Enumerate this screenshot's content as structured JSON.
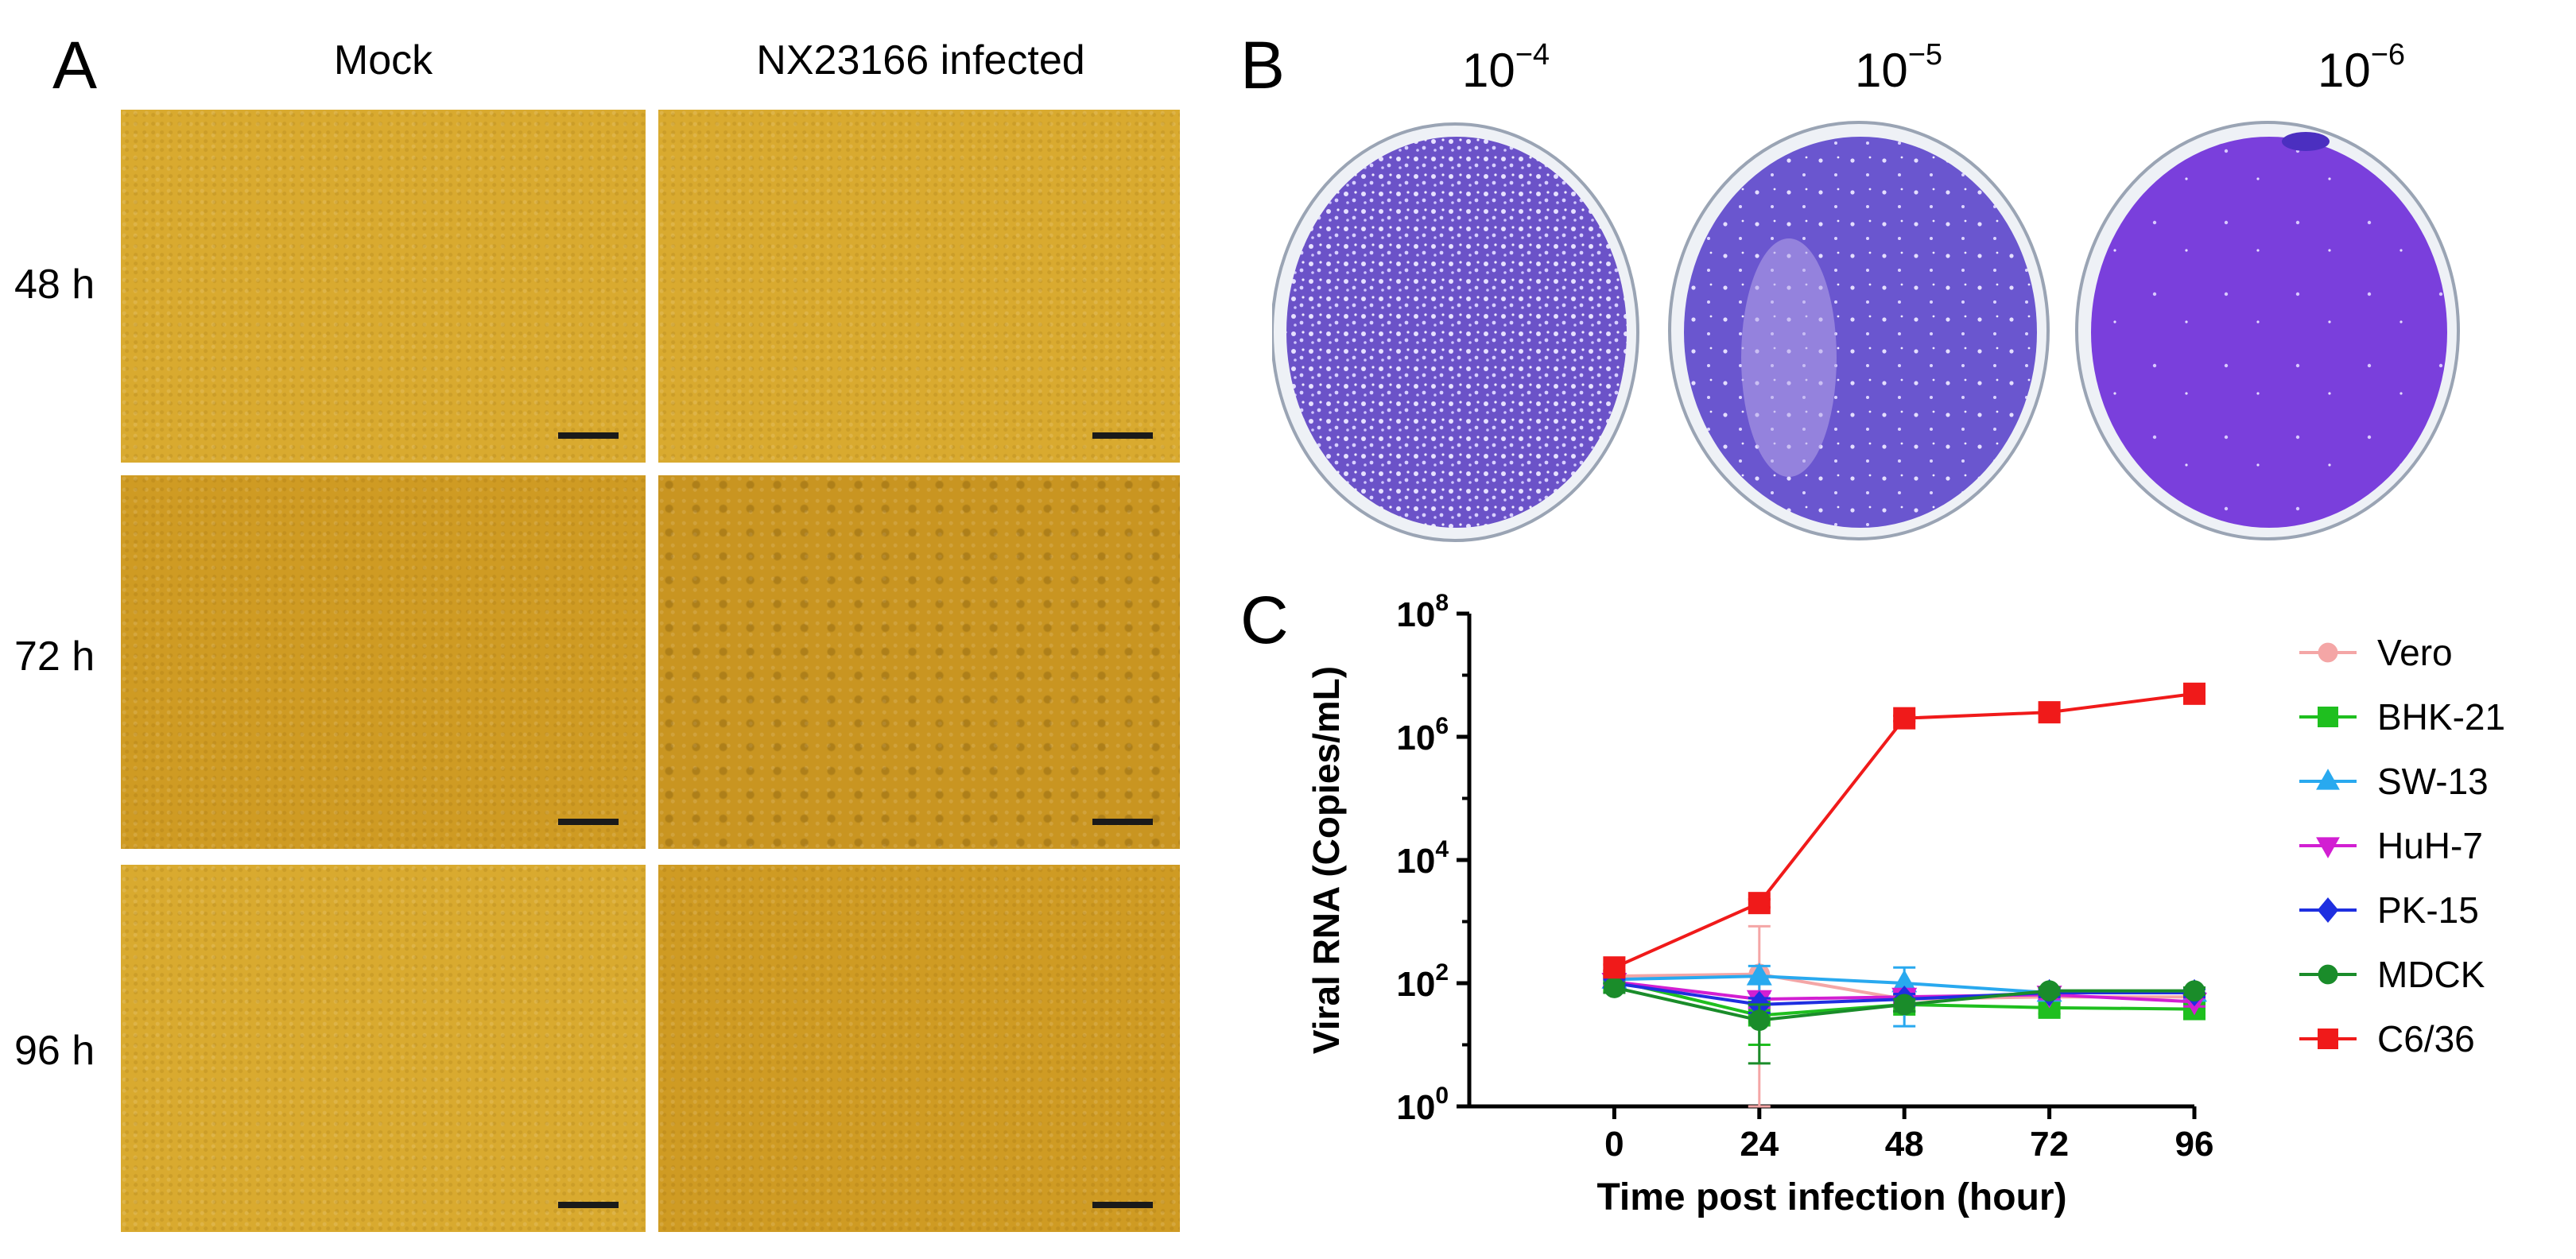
{
  "panelA": {
    "letter": "A",
    "columns": [
      "Mock",
      "NX23166 infected"
    ],
    "rows": [
      "48 h",
      "72 h",
      "96 h"
    ]
  },
  "panelB": {
    "letter": "B",
    "dilutions": [
      {
        "base": "10",
        "exp": "−4"
      },
      {
        "base": "10",
        "exp": "−5"
      },
      {
        "base": "10",
        "exp": "−6"
      }
    ]
  },
  "panelC": {
    "letter": "C"
  },
  "chart_data": {
    "type": "line",
    "xlabel": "Time post infection (hour)",
    "ylabel": "Viral RNA (Copies/mL)",
    "x": [
      0,
      24,
      48,
      72,
      96
    ],
    "xlim": [
      -24,
      96
    ],
    "xticks": [
      0,
      24,
      48,
      72,
      96
    ],
    "y_scale": "log10",
    "ylim": [
      1,
      100000000
    ],
    "yticks": [
      {
        "base": "10",
        "exp": "0",
        "value": 1
      },
      {
        "base": "10",
        "exp": "2",
        "value": 100
      },
      {
        "base": "10",
        "exp": "4",
        "value": 10000
      },
      {
        "base": "10",
        "exp": "6",
        "value": 1000000
      },
      {
        "base": "10",
        "exp": "8",
        "value": 100000000
      }
    ],
    "legend_position": "right",
    "series": [
      {
        "name": "Vero",
        "color": "#f4a6a6",
        "marker": "circle",
        "values": [
          130,
          140,
          55,
          60,
          60
        ],
        "error": [
          20,
          700,
          10,
          10,
          10
        ]
      },
      {
        "name": "BHK-21",
        "color": "#1fbf1f",
        "marker": "square",
        "values": [
          110,
          30,
          45,
          40,
          38
        ],
        "error": [
          15,
          20,
          10,
          8,
          8
        ]
      },
      {
        "name": "SW-13",
        "color": "#29a9ef",
        "marker": "triangle-up",
        "values": [
          115,
          130,
          100,
          70,
          70
        ],
        "error": [
          15,
          60,
          80,
          10,
          10
        ]
      },
      {
        "name": "HuH-7",
        "color": "#d21fd2",
        "marker": "triangle-down",
        "values": [
          105,
          55,
          60,
          65,
          50
        ],
        "error": [
          15,
          15,
          12,
          10,
          8
        ]
      },
      {
        "name": "PK-15",
        "color": "#1f2fe0",
        "marker": "diamond",
        "values": [
          100,
          45,
          55,
          70,
          70
        ],
        "error": [
          15,
          12,
          12,
          10,
          10
        ]
      },
      {
        "name": "MDCK",
        "color": "#1a8c2a",
        "marker": "circle",
        "values": [
          85,
          25,
          45,
          75,
          75
        ],
        "error": [
          15,
          20,
          10,
          10,
          10
        ]
      },
      {
        "name": "C6/36",
        "color": "#f01a1a",
        "marker": "square",
        "values": [
          180,
          2000,
          2000000,
          2500000,
          5000000
        ],
        "error": [
          20,
          300,
          200000,
          200000,
          400000
        ]
      }
    ]
  }
}
